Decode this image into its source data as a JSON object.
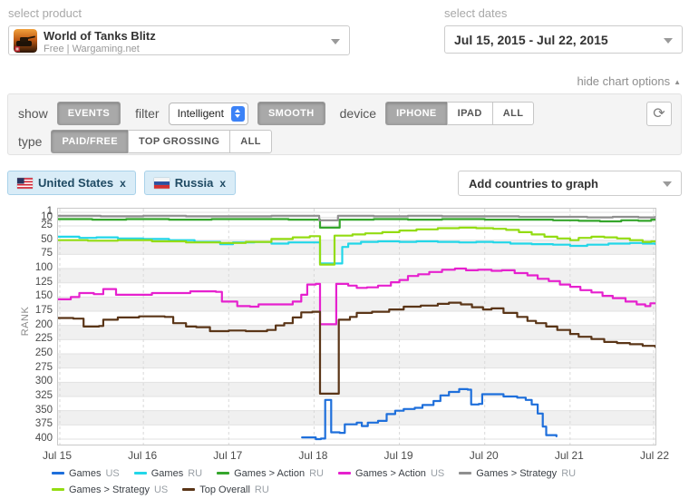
{
  "header": {
    "product_label": "select product",
    "product": {
      "title": "World of Tanks Blitz",
      "subtitle": "Free | Wargaming.net"
    },
    "dates_label": "select dates",
    "date_range": "Jul 15, 2015 - Jul 22, 2015",
    "hide_options_label": "hide chart options"
  },
  "options": {
    "show_label": "show",
    "events_button": "EVENTS",
    "filter_label": "filter",
    "filter_value": "Intelligent",
    "smooth_button": "SMOOTH",
    "device_label": "device",
    "devices": [
      "IPHONE",
      "IPAD",
      "ALL"
    ],
    "device_active": "IPHONE",
    "type_label": "type",
    "types": [
      "PAID/FREE",
      "TOP GROSSING",
      "ALL"
    ],
    "type_active": "PAID/FREE"
  },
  "countries": {
    "tags": [
      {
        "name": "United States",
        "remove": "x",
        "flag": "us"
      },
      {
        "name": "Russia",
        "remove": "x",
        "flag": "ru"
      }
    ],
    "add_placeholder": "Add countries to graph"
  },
  "chart_data": {
    "type": "line",
    "ylabel": "RANK",
    "y_inverted": true,
    "y_range": [
      1,
      400
    ],
    "y_ticks": [
      1,
      10,
      25,
      50,
      75,
      100,
      125,
      150,
      175,
      200,
      225,
      250,
      275,
      300,
      325,
      350,
      375,
      400
    ],
    "x_range": [
      15,
      22
    ],
    "x_tick_labels": [
      "Jul 15",
      "Jul 16",
      "Jul 17",
      "Jul 18",
      "Jul 19",
      "Jul 20",
      "Jul 21",
      "Jul 22"
    ],
    "grid": true,
    "legend_position": "bottom",
    "series": [
      {
        "id": "games-us",
        "name": "Games",
        "suffix": "US",
        "color": "#1e6fdb",
        "points": [
          [
            17.86,
            397
          ],
          [
            17.98,
            397
          ],
          [
            18.02,
            400
          ],
          [
            18.08,
            399
          ],
          [
            18.13,
            331
          ],
          [
            18.19,
            331
          ],
          [
            18.2,
            388
          ],
          [
            18.3,
            389
          ],
          [
            18.36,
            374
          ],
          [
            18.5,
            371
          ],
          [
            18.56,
            377
          ],
          [
            18.63,
            371
          ],
          [
            18.75,
            368
          ],
          [
            18.85,
            356
          ],
          [
            18.95,
            350
          ],
          [
            19.05,
            347
          ],
          [
            19.18,
            345
          ],
          [
            19.27,
            340
          ],
          [
            19.4,
            333
          ],
          [
            19.48,
            323
          ],
          [
            19.58,
            317
          ],
          [
            19.7,
            312
          ],
          [
            19.8,
            313
          ],
          [
            19.84,
            339
          ],
          [
            19.93,
            338
          ],
          [
            19.97,
            321
          ],
          [
            20.1,
            321
          ],
          [
            20.22,
            325
          ],
          [
            20.38,
            327
          ],
          [
            20.48,
            331
          ],
          [
            20.55,
            339
          ],
          [
            20.62,
            355
          ],
          [
            20.68,
            378
          ],
          [
            20.72,
            393
          ],
          [
            20.84,
            395
          ]
        ]
      },
      {
        "id": "games-ru",
        "name": "Games",
        "suffix": "RU",
        "color": "#22d6e8",
        "points": [
          [
            15.0,
            44
          ],
          [
            15.25,
            46
          ],
          [
            15.45,
            45
          ],
          [
            15.7,
            47
          ],
          [
            16.0,
            48
          ],
          [
            16.3,
            50
          ],
          [
            16.6,
            53
          ],
          [
            16.9,
            57
          ],
          [
            17.05,
            54
          ],
          [
            17.3,
            53
          ],
          [
            17.5,
            56
          ],
          [
            17.7,
            54
          ],
          [
            17.95,
            54
          ],
          [
            18.07,
            91
          ],
          [
            18.28,
            91
          ],
          [
            18.33,
            62
          ],
          [
            18.4,
            56
          ],
          [
            18.55,
            53
          ],
          [
            18.75,
            52
          ],
          [
            19.0,
            53
          ],
          [
            19.2,
            52
          ],
          [
            19.45,
            53
          ],
          [
            19.7,
            54
          ],
          [
            19.9,
            53
          ],
          [
            20.1,
            54
          ],
          [
            20.3,
            56
          ],
          [
            20.55,
            57
          ],
          [
            20.8,
            58
          ],
          [
            21.0,
            60
          ],
          [
            21.2,
            58
          ],
          [
            21.45,
            56
          ],
          [
            21.7,
            55
          ],
          [
            21.85,
            56
          ],
          [
            22.0,
            57
          ]
        ]
      },
      {
        "id": "games-action-ru",
        "name": "Games > Action",
        "suffix": "RU",
        "color": "#35a62c",
        "points": [
          [
            15.0,
            13
          ],
          [
            15.4,
            14
          ],
          [
            15.8,
            13
          ],
          [
            16.3,
            14
          ],
          [
            16.8,
            13
          ],
          [
            17.3,
            13
          ],
          [
            17.7,
            14
          ],
          [
            18.0,
            14
          ],
          [
            18.07,
            28
          ],
          [
            18.25,
            28
          ],
          [
            18.3,
            14
          ],
          [
            18.7,
            13
          ],
          [
            19.1,
            14
          ],
          [
            19.5,
            13
          ],
          [
            20.0,
            14
          ],
          [
            20.4,
            14
          ],
          [
            20.8,
            15
          ],
          [
            21.1,
            16
          ],
          [
            21.35,
            17
          ],
          [
            21.6,
            15
          ],
          [
            21.8,
            16
          ],
          [
            21.95,
            14
          ],
          [
            22.0,
            14
          ]
        ]
      },
      {
        "id": "games-action-us",
        "name": "Games > Action",
        "suffix": "US",
        "color": "#e621ce",
        "points": [
          [
            15.0,
            154
          ],
          [
            15.15,
            150
          ],
          [
            15.25,
            143
          ],
          [
            15.42,
            145
          ],
          [
            15.53,
            136
          ],
          [
            15.62,
            136
          ],
          [
            15.68,
            146
          ],
          [
            15.9,
            146
          ],
          [
            16.1,
            143
          ],
          [
            16.4,
            143
          ],
          [
            16.55,
            140
          ],
          [
            16.85,
            141
          ],
          [
            16.92,
            158
          ],
          [
            17.1,
            166
          ],
          [
            17.25,
            167
          ],
          [
            17.35,
            163
          ],
          [
            17.6,
            163
          ],
          [
            17.75,
            158
          ],
          [
            17.85,
            146
          ],
          [
            17.92,
            128
          ],
          [
            18.02,
            127
          ],
          [
            18.07,
            198
          ],
          [
            18.22,
            198
          ],
          [
            18.26,
            127
          ],
          [
            18.4,
            130
          ],
          [
            18.5,
            134
          ],
          [
            18.62,
            133
          ],
          [
            18.75,
            130
          ],
          [
            18.9,
            124
          ],
          [
            19.0,
            120
          ],
          [
            19.1,
            113
          ],
          [
            19.22,
            110
          ],
          [
            19.35,
            106
          ],
          [
            19.5,
            102
          ],
          [
            19.65,
            100
          ],
          [
            19.78,
            103
          ],
          [
            19.92,
            102
          ],
          [
            20.08,
            104
          ],
          [
            20.2,
            103
          ],
          [
            20.35,
            108
          ],
          [
            20.5,
            112
          ],
          [
            20.62,
            118
          ],
          [
            20.75,
            122
          ],
          [
            20.88,
            128
          ],
          [
            21.0,
            132
          ],
          [
            21.12,
            138
          ],
          [
            21.25,
            142
          ],
          [
            21.38,
            148
          ],
          [
            21.5,
            152
          ],
          [
            21.65,
            158
          ],
          [
            21.78,
            163
          ],
          [
            21.88,
            166
          ],
          [
            21.94,
            161
          ],
          [
            22.0,
            161
          ]
        ]
      },
      {
        "id": "games-strategy-ru",
        "name": "Games > Strategy",
        "suffix": "RU",
        "color": "#8f8f8f",
        "points": [
          [
            15.0,
            7
          ],
          [
            15.5,
            8
          ],
          [
            16.0,
            7
          ],
          [
            16.5,
            8
          ],
          [
            17.0,
            8
          ],
          [
            17.5,
            7
          ],
          [
            17.95,
            7
          ],
          [
            18.06,
            15
          ],
          [
            18.22,
            15
          ],
          [
            18.28,
            7
          ],
          [
            18.7,
            8
          ],
          [
            19.1,
            7
          ],
          [
            19.5,
            8
          ],
          [
            20.0,
            8
          ],
          [
            20.4,
            9
          ],
          [
            20.8,
            9
          ],
          [
            21.2,
            10
          ],
          [
            21.5,
            9
          ],
          [
            21.8,
            10
          ],
          [
            22.0,
            9
          ]
        ]
      },
      {
        "id": "games-strategy-us",
        "name": "Games > Strategy",
        "suffix": "US",
        "color": "#93dc12",
        "points": [
          [
            15.0,
            50
          ],
          [
            15.35,
            51
          ],
          [
            15.7,
            50
          ],
          [
            16.1,
            52
          ],
          [
            16.5,
            54
          ],
          [
            16.9,
            55
          ],
          [
            17.2,
            53
          ],
          [
            17.5,
            48
          ],
          [
            17.75,
            45
          ],
          [
            17.95,
            43
          ],
          [
            18.07,
            93
          ],
          [
            18.2,
            93
          ],
          [
            18.24,
            42
          ],
          [
            18.45,
            40
          ],
          [
            18.6,
            38
          ],
          [
            18.8,
            36
          ],
          [
            19.0,
            33
          ],
          [
            19.2,
            31
          ],
          [
            19.45,
            29
          ],
          [
            19.7,
            28
          ],
          [
            19.9,
            29
          ],
          [
            20.1,
            30
          ],
          [
            20.25,
            32
          ],
          [
            20.4,
            36
          ],
          [
            20.55,
            40
          ],
          [
            20.7,
            44
          ],
          [
            20.85,
            47
          ],
          [
            21.0,
            50
          ],
          [
            21.1,
            46
          ],
          [
            21.25,
            44
          ],
          [
            21.4,
            45
          ],
          [
            21.55,
            47
          ],
          [
            21.7,
            50
          ],
          [
            21.85,
            53
          ],
          [
            21.95,
            52
          ],
          [
            22.0,
            52
          ]
        ]
      },
      {
        "id": "top-overall-ru",
        "name": "Top Overall",
        "suffix": "RU",
        "color": "#5a3517",
        "points": [
          [
            15.0,
            187
          ],
          [
            15.18,
            188
          ],
          [
            15.3,
            202
          ],
          [
            15.48,
            201
          ],
          [
            15.53,
            190
          ],
          [
            15.7,
            186
          ],
          [
            15.95,
            184
          ],
          [
            16.25,
            185
          ],
          [
            16.35,
            196
          ],
          [
            16.5,
            202
          ],
          [
            16.62,
            203
          ],
          [
            16.78,
            210
          ],
          [
            17.0,
            209
          ],
          [
            17.2,
            210
          ],
          [
            17.45,
            208
          ],
          [
            17.55,
            200
          ],
          [
            17.65,
            196
          ],
          [
            17.75,
            186
          ],
          [
            17.85,
            177
          ],
          [
            17.98,
            176
          ],
          [
            18.07,
            320
          ],
          [
            18.24,
            320
          ],
          [
            18.29,
            190
          ],
          [
            18.42,
            185
          ],
          [
            18.5,
            178
          ],
          [
            18.68,
            176
          ],
          [
            18.88,
            172
          ],
          [
            19.05,
            167
          ],
          [
            19.25,
            165
          ],
          [
            19.45,
            162
          ],
          [
            19.58,
            160
          ],
          [
            19.72,
            163
          ],
          [
            19.85,
            168
          ],
          [
            19.98,
            172
          ],
          [
            20.08,
            170
          ],
          [
            20.22,
            178
          ],
          [
            20.38,
            185
          ],
          [
            20.5,
            192
          ],
          [
            20.6,
            196
          ],
          [
            20.72,
            202
          ],
          [
            20.85,
            208
          ],
          [
            21.0,
            215
          ],
          [
            21.1,
            220
          ],
          [
            21.25,
            224
          ],
          [
            21.4,
            229
          ],
          [
            21.55,
            231
          ],
          [
            21.7,
            233
          ],
          [
            21.85,
            236
          ],
          [
            22.0,
            238
          ]
        ]
      }
    ]
  }
}
